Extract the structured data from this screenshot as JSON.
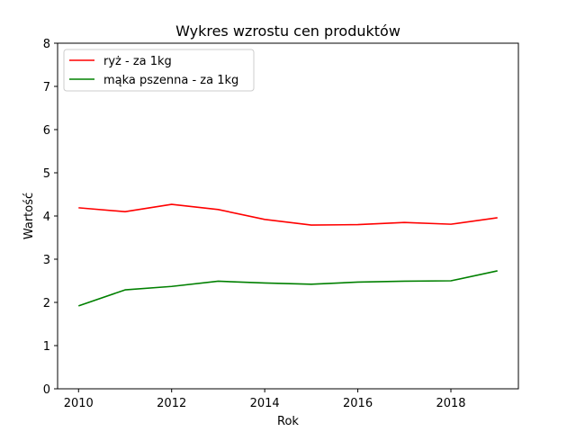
{
  "chart_data": {
    "type": "line",
    "title": "Wykres wzrostu cen produktów",
    "xlabel": "Rok",
    "ylabel": "Wartość",
    "x": [
      2010,
      2011,
      2012,
      2013,
      2014,
      2015,
      2016,
      2017,
      2018,
      2019
    ],
    "xlim": [
      2009.55,
      2019.45
    ],
    "ylim": [
      0,
      8
    ],
    "xticks": [
      2010,
      2012,
      2014,
      2016,
      2018
    ],
    "yticks": [
      0,
      1,
      2,
      3,
      4,
      5,
      6,
      7,
      8
    ],
    "grid": false,
    "legend_position": "top-left",
    "series": [
      {
        "name": "ryż - za 1kg",
        "color": "#ff0000",
        "values": [
          4.19,
          4.1,
          4.27,
          4.15,
          3.92,
          3.79,
          3.8,
          3.85,
          3.81,
          3.96
        ]
      },
      {
        "name": "mąka pszenna - za 1kg",
        "color": "#008000",
        "values": [
          1.92,
          2.29,
          2.37,
          2.49,
          2.45,
          2.42,
          2.47,
          2.49,
          2.5,
          2.73
        ]
      }
    ]
  }
}
